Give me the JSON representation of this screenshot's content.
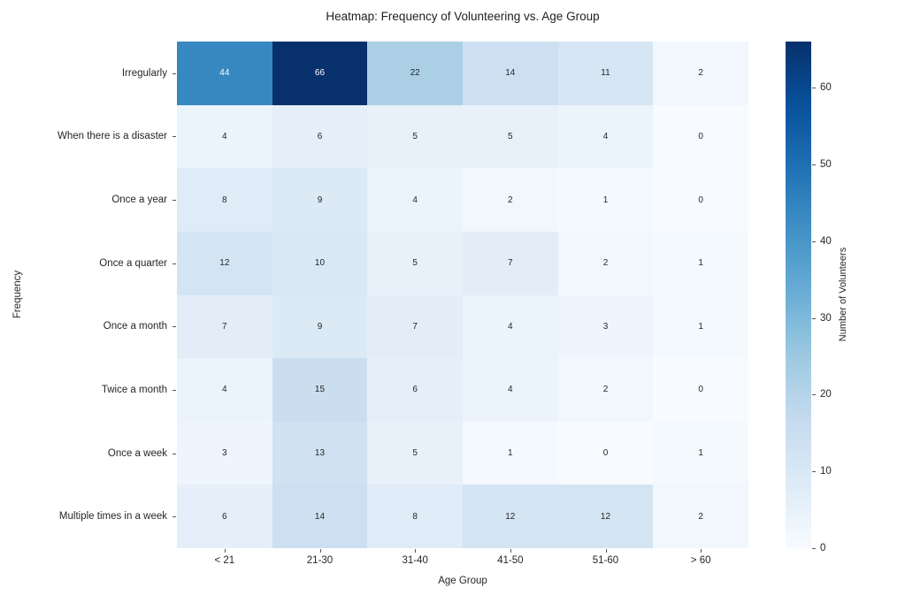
{
  "chart_data": {
    "type": "heatmap",
    "title": "Heatmap: Frequency of Volunteering vs. Age Group",
    "xlabel": "Age Group",
    "ylabel": "Frequency",
    "x_categories": [
      "< 21",
      "21-30",
      "31-40",
      "41-50",
      "51-60",
      "> 60"
    ],
    "y_categories": [
      "Irregularly",
      "When there is a disaster",
      "Once a year",
      "Once a quarter",
      "Once a month",
      "Twice a month",
      "Once a week",
      "Multiple times in a week"
    ],
    "values": [
      [
        44,
        66,
        22,
        14,
        11,
        2
      ],
      [
        4,
        6,
        5,
        5,
        4,
        0
      ],
      [
        8,
        9,
        4,
        2,
        1,
        0
      ],
      [
        12,
        10,
        5,
        7,
        2,
        1
      ],
      [
        7,
        9,
        7,
        4,
        3,
        1
      ],
      [
        4,
        15,
        6,
        4,
        2,
        0
      ],
      [
        3,
        13,
        5,
        1,
        0,
        1
      ],
      [
        6,
        14,
        8,
        12,
        12,
        2
      ]
    ],
    "vmin": 0,
    "vmax": 66,
    "grid": false,
    "legend_position": "colorbar-right",
    "colorbar": {
      "label": "Number of Volunteers",
      "ticks": [
        0,
        10,
        20,
        30,
        40,
        50,
        60
      ]
    },
    "colormap": {
      "name": "Blues",
      "anchors": [
        {
          "pos": 0.0,
          "color": "#f7fbff"
        },
        {
          "pos": 0.125,
          "color": "#deebf7"
        },
        {
          "pos": 0.25,
          "color": "#c6dbef"
        },
        {
          "pos": 0.375,
          "color": "#9ecae1"
        },
        {
          "pos": 0.5,
          "color": "#6baed6"
        },
        {
          "pos": 0.625,
          "color": "#4292c6"
        },
        {
          "pos": 0.75,
          "color": "#2171b5"
        },
        {
          "pos": 0.875,
          "color": "#08519c"
        },
        {
          "pos": 1.0,
          "color": "#08306b"
        }
      ]
    },
    "annotation_colors": {
      "on_light_cell": "#262626",
      "on_dark_cell": "#ffffff"
    }
  }
}
